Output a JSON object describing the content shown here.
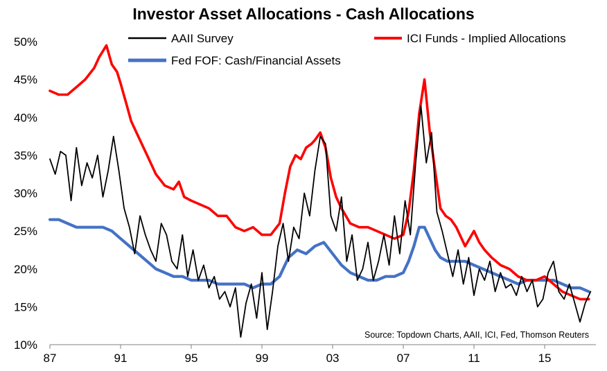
{
  "chart_data": {
    "type": "line",
    "title": "Investor Asset Allocations - Cash Allocations",
    "xlabel": "",
    "ylabel": "",
    "xlim": [
      1987,
      2017.9
    ],
    "ylim": [
      10,
      50
    ],
    "y_ticks": [
      10,
      15,
      20,
      25,
      30,
      35,
      40,
      45,
      50
    ],
    "y_tick_labels": [
      "10%",
      "15%",
      "20%",
      "25%",
      "30%",
      "35%",
      "40%",
      "45%",
      "50%"
    ],
    "x_ticks": [
      1987,
      1991,
      1995,
      1999,
      2003,
      2007,
      2011,
      2015
    ],
    "x_tick_labels": [
      "87",
      "91",
      "95",
      "99",
      "03",
      "07",
      "11",
      "15"
    ],
    "grid": false,
    "legend_placement": "top",
    "source": "Source: Topdown Charts, AAII, ICI, Fed, Thomson Reuters",
    "series": [
      {
        "name": "AAII Survey",
        "color": "#000000",
        "x": [
          1987.0,
          1987.3,
          1987.6,
          1987.9,
          1988.2,
          1988.5,
          1988.8,
          1989.1,
          1989.4,
          1989.7,
          1990.0,
          1990.3,
          1990.6,
          1990.9,
          1991.2,
          1991.5,
          1991.8,
          1992.1,
          1992.4,
          1992.7,
          1993.0,
          1993.3,
          1993.6,
          1993.9,
          1994.2,
          1994.5,
          1994.8,
          1995.1,
          1995.4,
          1995.7,
          1996.0,
          1996.3,
          1996.6,
          1996.9,
          1997.2,
          1997.5,
          1997.8,
          1998.1,
          1998.4,
          1998.7,
          1999.0,
          1999.3,
          1999.6,
          1999.9,
          2000.2,
          2000.5,
          2000.8,
          2001.1,
          2001.4,
          2001.7,
          2002.0,
          2002.3,
          2002.6,
          2002.9,
          2003.2,
          2003.5,
          2003.8,
          2004.1,
          2004.4,
          2004.7,
          2005.0,
          2005.3,
          2005.6,
          2005.9,
          2006.2,
          2006.5,
          2006.8,
          2007.1,
          2007.4,
          2007.7,
          2008.0,
          2008.3,
          2008.6,
          2008.9,
          2009.2,
          2009.5,
          2009.8,
          2010.1,
          2010.4,
          2010.7,
          2011.0,
          2011.3,
          2011.6,
          2011.9,
          2012.2,
          2012.5,
          2012.8,
          2013.1,
          2013.4,
          2013.7,
          2014.0,
          2014.3,
          2014.6,
          2014.9,
          2015.2,
          2015.5,
          2015.8,
          2016.1,
          2016.4,
          2016.7,
          2017.0,
          2017.3,
          2017.6
        ],
        "values": [
          34.5,
          32.5,
          35.5,
          35.0,
          29.0,
          36.0,
          31.0,
          34.0,
          32.0,
          35.0,
          29.5,
          33.0,
          37.5,
          33.0,
          28.0,
          25.5,
          22.0,
          27.0,
          24.5,
          22.5,
          21.0,
          26.0,
          24.5,
          21.0,
          20.0,
          24.5,
          19.0,
          22.5,
          18.5,
          20.5,
          17.5,
          19.0,
          16.0,
          17.0,
          15.0,
          17.5,
          11.0,
          15.5,
          18.0,
          13.5,
          19.5,
          12.0,
          17.0,
          23.0,
          26.0,
          21.0,
          25.5,
          24.0,
          30.0,
          27.0,
          33.0,
          37.5,
          36.5,
          27.0,
          25.0,
          29.5,
          21.0,
          24.5,
          18.5,
          20.0,
          23.5,
          18.5,
          21.0,
          24.5,
          20.5,
          27.0,
          22.0,
          29.0,
          24.5,
          34.0,
          41.5,
          34.0,
          38.0,
          27.5,
          25.0,
          22.0,
          19.0,
          22.5,
          18.0,
          21.5,
          16.5,
          20.0,
          18.5,
          21.0,
          17.0,
          19.5,
          17.5,
          18.0,
          16.5,
          19.0,
          17.0,
          18.5,
          15.0,
          16.0,
          19.5,
          21.0,
          17.0,
          16.0,
          18.0,
          15.5,
          13.0,
          15.5,
          17.0
        ]
      },
      {
        "name": "ICI Funds - Implied Allocations",
        "color": "#ff0000",
        "x": [
          1987.0,
          1987.5,
          1988.0,
          1988.5,
          1989.0,
          1989.5,
          1989.8,
          1990.2,
          1990.5,
          1990.8,
          1991.0,
          1991.3,
          1991.6,
          1992.0,
          1992.5,
          1993.0,
          1993.5,
          1994.0,
          1994.3,
          1994.6,
          1995.0,
          1995.5,
          1996.0,
          1996.5,
          1997.0,
          1997.5,
          1998.0,
          1998.5,
          1999.0,
          1999.5,
          2000.0,
          2000.3,
          2000.6,
          2000.9,
          2001.2,
          2001.5,
          2001.8,
          2002.0,
          2002.3,
          2002.6,
          2002.9,
          2003.2,
          2003.5,
          2004.0,
          2004.5,
          2005.0,
          2005.5,
          2006.0,
          2006.5,
          2007.0,
          2007.3,
          2007.6,
          2007.9,
          2008.2,
          2008.5,
          2008.8,
          2009.1,
          2009.4,
          2009.7,
          2010.0,
          2010.5,
          2011.0,
          2011.3,
          2011.6,
          2012.0,
          2012.5,
          2013.0,
          2013.5,
          2014.0,
          2014.5,
          2015.0,
          2015.5,
          2016.0,
          2016.5,
          2017.0,
          2017.5
        ],
        "values": [
          43.5,
          43.0,
          43.0,
          44.0,
          45.0,
          46.5,
          48.0,
          49.5,
          47.0,
          46.0,
          44.5,
          42.0,
          39.5,
          37.5,
          35.0,
          32.5,
          31.0,
          30.5,
          31.5,
          29.5,
          29.0,
          28.5,
          28.0,
          27.0,
          27.0,
          25.5,
          25.0,
          25.5,
          24.5,
          24.5,
          26.0,
          30.0,
          33.5,
          35.0,
          34.5,
          36.0,
          36.5,
          37.0,
          38.0,
          36.0,
          32.0,
          29.5,
          28.0,
          26.0,
          25.5,
          25.5,
          25.0,
          24.5,
          24.0,
          24.5,
          27.5,
          33.0,
          40.5,
          45.0,
          38.0,
          33.0,
          28.0,
          27.0,
          26.5,
          25.5,
          23.0,
          25.0,
          23.5,
          22.5,
          21.5,
          20.5,
          20.0,
          19.0,
          18.5,
          18.5,
          19.0,
          18.0,
          17.0,
          16.5,
          16.0,
          16.0
        ]
      },
      {
        "name": "Fed FOF: Cash/Financial Assets",
        "color": "#4472c4",
        "x": [
          1987.0,
          1987.5,
          1988.0,
          1988.5,
          1989.0,
          1989.5,
          1990.0,
          1990.5,
          1991.0,
          1991.5,
          1992.0,
          1992.5,
          1993.0,
          1993.5,
          1994.0,
          1994.5,
          1995.0,
          1995.5,
          1996.0,
          1996.5,
          1997.0,
          1997.5,
          1998.0,
          1998.5,
          1999.0,
          1999.5,
          2000.0,
          2000.5,
          2001.0,
          2001.5,
          2002.0,
          2002.5,
          2003.0,
          2003.5,
          2004.0,
          2004.5,
          2005.0,
          2005.5,
          2006.0,
          2006.5,
          2007.0,
          2007.3,
          2007.6,
          2007.9,
          2008.2,
          2008.5,
          2008.8,
          2009.1,
          2009.5,
          2010.0,
          2010.5,
          2011.0,
          2011.5,
          2012.0,
          2012.5,
          2013.0,
          2013.5,
          2014.0,
          2014.5,
          2015.0,
          2015.5,
          2016.0,
          2016.5,
          2017.0,
          2017.5
        ],
        "values": [
          26.5,
          26.5,
          26.0,
          25.5,
          25.5,
          25.5,
          25.5,
          25.0,
          24.0,
          23.0,
          22.0,
          21.0,
          20.0,
          19.5,
          19.0,
          19.0,
          18.5,
          18.5,
          18.5,
          18.0,
          18.0,
          18.0,
          18.0,
          17.5,
          18.0,
          18.0,
          19.0,
          21.5,
          22.5,
          22.0,
          23.0,
          23.5,
          22.0,
          20.5,
          19.5,
          19.0,
          18.5,
          18.5,
          19.0,
          19.0,
          19.5,
          21.0,
          23.0,
          25.5,
          25.5,
          24.0,
          22.5,
          21.5,
          21.0,
          21.0,
          21.0,
          20.5,
          20.0,
          19.5,
          19.0,
          18.5,
          18.0,
          18.5,
          18.5,
          18.5,
          18.5,
          18.0,
          17.5,
          17.5,
          17.0
        ]
      }
    ]
  }
}
